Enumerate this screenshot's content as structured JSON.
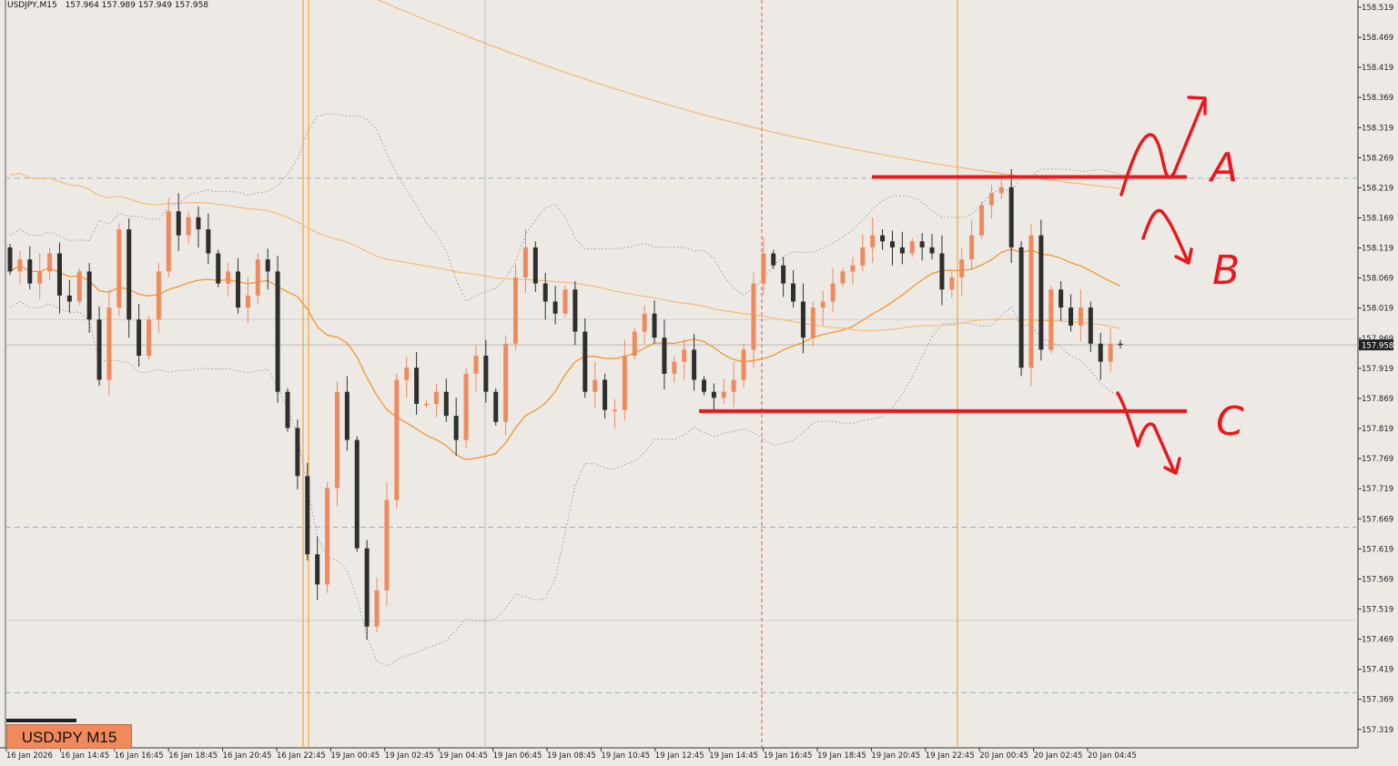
{
  "header": {
    "symbol_tf": "USDJPY,M15",
    "ohlc": "157.964 157.989 157.949 157.958"
  },
  "badge": {
    "label": "USDJPY M15"
  },
  "current_price_label": "157.958",
  "colors": {
    "background": "#edeae6",
    "bull": "#f08a5d",
    "bear": "#2e2e2e",
    "ma_fast": "#f0962e",
    "ma_slow": "#f5b870",
    "bands": "#9a9a9a",
    "annotation": "#e8181e",
    "session_line": "#f2a534",
    "price_line": "#b8b8b8"
  },
  "annotations": {
    "labels": [
      "A",
      "B",
      "C"
    ]
  },
  "chart_data": {
    "type": "candlestick",
    "title": "",
    "xlabel": "",
    "ylabel": "",
    "ylim": [
      157.29,
      158.525
    ],
    "grid": false,
    "y_ticks": [
      "158.519",
      "158.469",
      "158.419",
      "158.369",
      "158.319",
      "158.269",
      "158.219",
      "158.169",
      "158.119",
      "158.069",
      "158.019",
      "157.969",
      "157.919",
      "157.869",
      "157.819",
      "157.769",
      "157.719",
      "157.669",
      "157.619",
      "157.569",
      "157.519",
      "157.469",
      "157.419",
      "157.369",
      "157.319"
    ],
    "x_ticks": [
      "16 Jan 2026",
      "16 Jan 14:45",
      "16 Jan 16:45",
      "16 Jan 18:45",
      "16 Jan 20:45",
      "16 Jan 22:45",
      "19 Jan 00:45",
      "19 Jan 02:45",
      "19 Jan 04:45",
      "19 Jan 06:45",
      "19 Jan 08:45",
      "19 Jan 10:45",
      "19 Jan 12:45",
      "19 Jan 14:45",
      "19 Jan 16:45",
      "19 Jan 18:45",
      "19 Jan 20:45",
      "19 Jan 22:45",
      "20 Jan 00:45",
      "20 Jan 02:45",
      "20 Jan 04:45"
    ],
    "closes": [
      158.08,
      158.1,
      158.06,
      158.08,
      158.11,
      158.04,
      158.03,
      158.08,
      158.0,
      157.9,
      158.02,
      158.15,
      158.0,
      157.94,
      158.0,
      158.08,
      158.18,
      158.14,
      158.17,
      158.15,
      158.11,
      158.06,
      158.08,
      158.02,
      158.04,
      158.1,
      158.08,
      157.88,
      157.82,
      157.74,
      157.61,
      157.56,
      157.72,
      157.88,
      157.8,
      157.62,
      157.49,
      157.55,
      157.7,
      157.9,
      157.92,
      157.86,
      157.86,
      157.88,
      157.84,
      157.8,
      157.91,
      157.94,
      157.88,
      157.83,
      157.96,
      158.07,
      158.12,
      158.06,
      158.03,
      158.01,
      158.05,
      157.98,
      157.88,
      157.9,
      157.85,
      157.85,
      157.94,
      157.98,
      158.01,
      157.97,
      157.91,
      157.93,
      157.95,
      157.9,
      157.88,
      157.87,
      157.88,
      157.9,
      157.95,
      158.06,
      158.11,
      158.09,
      158.06,
      158.03,
      157.97,
      158.02,
      158.03,
      158.06,
      158.08,
      158.09,
      158.12,
      158.14,
      158.13,
      158.12,
      158.11,
      158.13,
      158.12,
      158.11,
      158.05,
      158.07,
      158.1,
      158.14,
      158.19,
      158.21,
      158.22,
      158.12,
      157.92,
      158.14,
      157.95,
      158.05,
      158.02,
      157.99,
      158.02,
      157.96,
      157.93,
      157.96,
      157.958
    ],
    "bollinger": "20-period bands (dotted)",
    "moving_averages": [
      "fast MA (orange)",
      "slow MA (light orange)"
    ],
    "horizontal_levels": [
      158.237,
      157.848
    ],
    "vertical_sessions": [
      "16 Jan 22:45",
      "19 Jan 22:45"
    ]
  }
}
